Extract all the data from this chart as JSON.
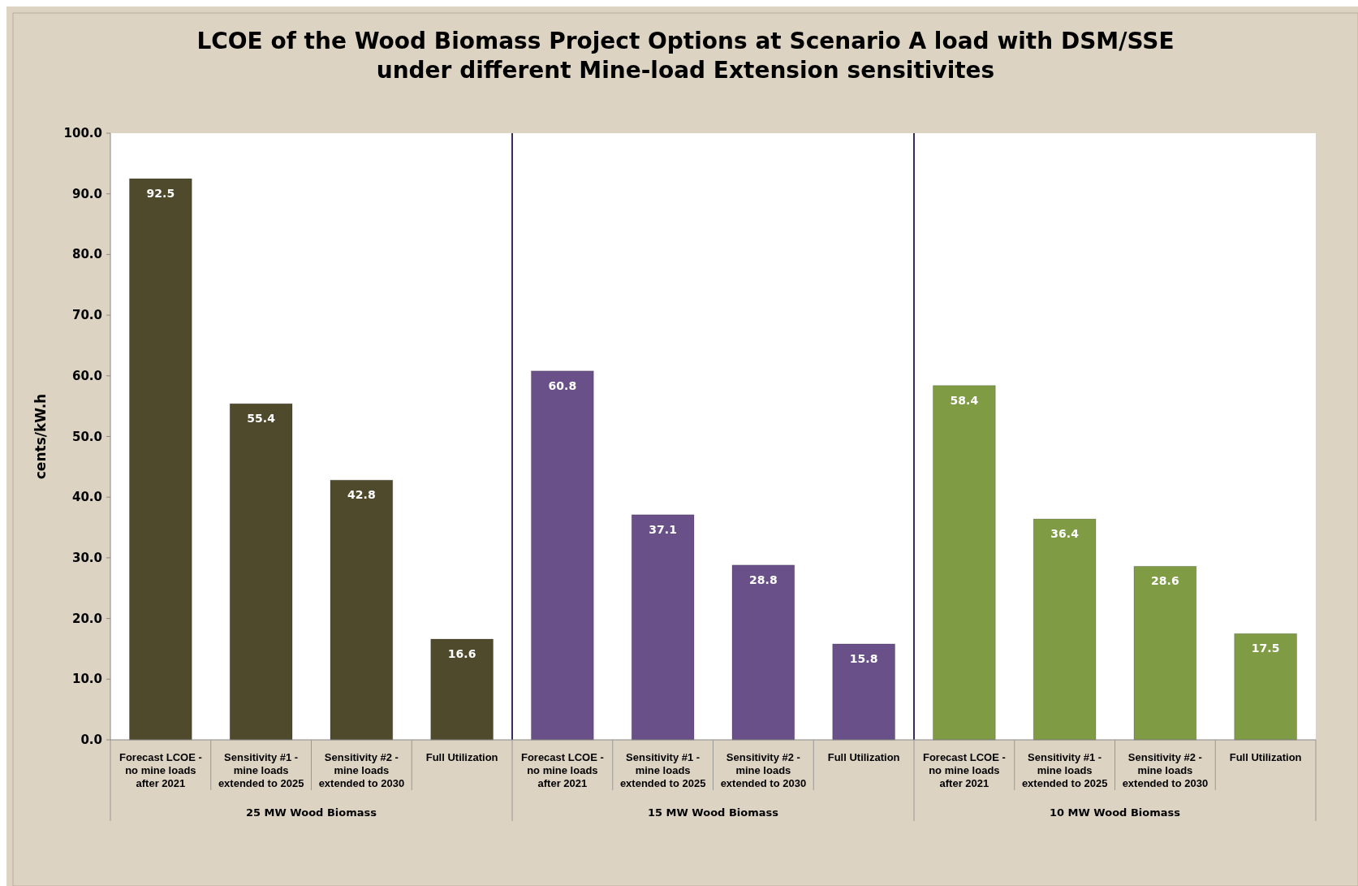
{
  "chart_data": {
    "type": "bar",
    "title": "LCOE of the Wood Biomass Project Options at Scenario A load with DSM/SSE\nunder different Mine-load  Extension sensitivites",
    "ylabel": "cents/kW.h",
    "categories": [
      "Forecast LCOE -\nno mine loads\nafter 2021",
      "Sensitivity #1 -\nmine loads\nextended to 2025",
      "Sensitivity #2 -\nmine loads\nextended to 2030",
      "Full Utilization",
      "Forecast LCOE -\nno mine loads\nafter 2021",
      "Sensitivity #1 -\nmine loads\nextended to 2025",
      "Sensitivity #2 -\nmine loads\nextended to 2030",
      "Full Utilization",
      "Forecast LCOE -\nno mine loads\nafter 2021",
      "Sensitivity #1 -\nmine loads\nextended to 2025",
      "Sensitivity #2 -\nmine loads\nextended to 2030",
      "Full Utilization"
    ],
    "values": [
      92.5,
      55.4,
      42.8,
      16.6,
      60.8,
      37.1,
      28.8,
      15.8,
      58.4,
      36.4,
      28.6,
      17.5
    ],
    "colors": [
      "#4f4a2c",
      "#4f4a2c",
      "#4f4a2c",
      "#4f4a2c",
      "#6a5088",
      "#6a5088",
      "#6a5088",
      "#6a5088",
      "#7f9c45",
      "#7f9c45",
      "#7f9c45",
      "#7f9c45"
    ],
    "ylim": [
      0,
      100
    ],
    "yticks": [
      {
        "value": 0,
        "label": "0.0"
      },
      {
        "value": 10,
        "label": "10.0"
      },
      {
        "value": 20,
        "label": "20.0"
      },
      {
        "value": 30,
        "label": "30.0"
      },
      {
        "value": 40,
        "label": "40.0"
      },
      {
        "value": 50,
        "label": "50.0"
      },
      {
        "value": 60,
        "label": "60.0"
      },
      {
        "value": 70,
        "label": "70.0"
      },
      {
        "value": 80,
        "label": "80.0"
      },
      {
        "value": 90,
        "label": "90.0"
      },
      {
        "value": 100,
        "label": "100.0"
      }
    ],
    "annotations": [
      "25 MW Wood Biomass",
      "15 MW Wood Biomass",
      "10 MW Wood Biomass"
    ],
    "data_labels": true,
    "grid": false
  }
}
